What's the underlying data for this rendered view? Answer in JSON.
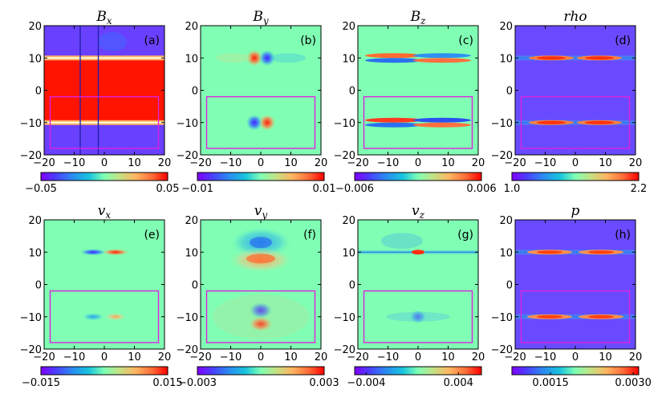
{
  "chart_data": [
    {
      "type": "heatmap",
      "panel": "(a)",
      "title": "B_x",
      "x_ticks": [
        "−20",
        "−10",
        "0",
        "10",
        "20"
      ],
      "y_ticks": [
        "20",
        "10",
        "0",
        "−10",
        "−20"
      ],
      "xlim": [
        -20,
        20
      ],
      "ylim": [
        -20,
        20
      ],
      "colorbar": {
        "min": -0.05,
        "max": 0.05,
        "labels": [
          "−0.05",
          "0.05"
        ],
        "colormap": "rainbow"
      },
      "features": {
        "background": "blue",
        "sheet_band_color": "red",
        "vertical_lines_x": [
          -8,
          -2
        ],
        "box": [
          -18,
          18,
          -18,
          -2
        ]
      }
    },
    {
      "type": "heatmap",
      "panel": "(b)",
      "title": "B_y",
      "x_ticks": [
        "−20",
        "−10",
        "0",
        "10",
        "20"
      ],
      "y_ticks": [
        "20",
        "10",
        "0",
        "−10",
        "−20"
      ],
      "xlim": [
        -20,
        20
      ],
      "ylim": [
        -20,
        20
      ],
      "colorbar": {
        "min": -0.01,
        "max": 0.01,
        "labels": [
          "−0.01",
          "0.01"
        ],
        "colormap": "rainbow"
      },
      "features": {
        "box": [
          -18,
          18,
          -18,
          -2
        ]
      }
    },
    {
      "type": "heatmap",
      "panel": "(c)",
      "title": "B_z",
      "x_ticks": [
        "−20",
        "−10",
        "0",
        "10",
        "20"
      ],
      "y_ticks": [
        "20",
        "10",
        "0",
        "−10",
        "−20"
      ],
      "xlim": [
        -20,
        20
      ],
      "ylim": [
        -20,
        20
      ],
      "colorbar": {
        "min": -0.006,
        "max": 0.006,
        "labels": [
          "−0.006",
          "0.006"
        ],
        "colormap": "rainbow"
      },
      "features": {
        "box": [
          -18,
          18,
          -18,
          -2
        ]
      }
    },
    {
      "type": "heatmap",
      "panel": "(d)",
      "title": "rho",
      "x_ticks": [
        "−20",
        "−10",
        "0",
        "10",
        "20"
      ],
      "y_ticks": [
        "20",
        "10",
        "0",
        "−10",
        "−20"
      ],
      "xlim": [
        -20,
        20
      ],
      "ylim": [
        -20,
        20
      ],
      "colorbar": {
        "min": 1.0,
        "max": 2.2,
        "labels": [
          "1.0",
          "2.2"
        ],
        "colormap": "rainbow"
      },
      "features": {
        "box": [
          -18,
          18,
          -18,
          -2
        ]
      }
    },
    {
      "type": "heatmap",
      "panel": "(e)",
      "title": "v_x",
      "x_ticks": [
        "−20",
        "−10",
        "0",
        "10",
        "20"
      ],
      "y_ticks": [
        "20",
        "10",
        "0",
        "−10",
        "−20"
      ],
      "xlim": [
        -20,
        20
      ],
      "ylim": [
        -20,
        20
      ],
      "colorbar": {
        "min": -0.015,
        "max": 0.015,
        "labels": [
          "−0.015",
          "0.015"
        ],
        "colormap": "rainbow"
      },
      "features": {
        "box": [
          -18,
          18,
          -18,
          -2
        ]
      }
    },
    {
      "type": "heatmap",
      "panel": "(f)",
      "title": "v_y",
      "x_ticks": [
        "−20",
        "−10",
        "0",
        "10",
        "20"
      ],
      "y_ticks": [
        "20",
        "10",
        "0",
        "−10",
        "−20"
      ],
      "xlim": [
        -20,
        20
      ],
      "ylim": [
        -20,
        20
      ],
      "colorbar": {
        "min": -0.003,
        "max": 0.003,
        "labels": [
          "−0.003",
          "0.003"
        ],
        "colormap": "rainbow"
      },
      "features": {
        "box": [
          -18,
          18,
          -18,
          -2
        ]
      }
    },
    {
      "type": "heatmap",
      "panel": "(g)",
      "title": "v_z",
      "x_ticks": [
        "−20",
        "−10",
        "0",
        "10",
        "20"
      ],
      "y_ticks": [
        "20",
        "10",
        "0",
        "−10",
        "−20"
      ],
      "xlim": [
        -20,
        20
      ],
      "ylim": [
        -20,
        20
      ],
      "colorbar": {
        "min": -0.005,
        "max": 0.006,
        "labels": [
          "−0.004",
          "0.004"
        ],
        "label_values": [
          -0.004,
          0.004
        ],
        "colormap": "rainbow"
      },
      "features": {
        "box": [
          -18,
          18,
          -18,
          -2
        ]
      }
    },
    {
      "type": "heatmap",
      "panel": "(h)",
      "title": "p",
      "x_ticks": [
        "−20",
        "−10",
        "0",
        "10",
        "20"
      ],
      "y_ticks": [
        "20",
        "10",
        "0",
        "−10",
        "−20"
      ],
      "xlim": [
        -20,
        20
      ],
      "ylim": [
        -20,
        20
      ],
      "colorbar": {
        "min": 0.0008,
        "max": 0.0031,
        "labels": [
          "0.0015",
          "0.0030"
        ],
        "label_values": [
          0.0015,
          0.003
        ],
        "colormap": "rainbow"
      },
      "features": {
        "box": [
          -18,
          18,
          -18,
          -2
        ]
      }
    }
  ],
  "colors": {
    "box": "#dd22dd",
    "vlines": "#2222aa",
    "frame": "#000000"
  }
}
